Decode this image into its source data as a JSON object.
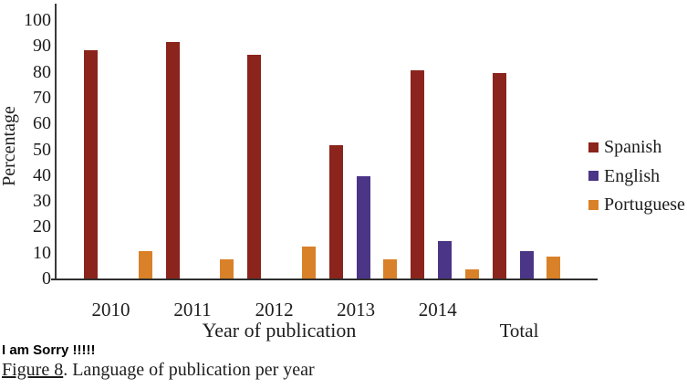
{
  "chart_data": {
    "type": "bar",
    "title": "",
    "categories": [
      "2010",
      "2011",
      "2012",
      "2013",
      "2014",
      "Total"
    ],
    "series": [
      {
        "name": "Spanish",
        "color": "#8b241c",
        "values": [
          89,
          92,
          87,
          52,
          81,
          80
        ]
      },
      {
        "name": "English",
        "color": "#4b3586",
        "values": [
          0,
          0,
          0,
          40,
          15,
          11
        ]
      },
      {
        "name": "Portuguese",
        "color": "#d98129",
        "values": [
          11,
          8,
          13,
          8,
          4,
          9
        ]
      }
    ],
    "xlabel": "Year of publication",
    "ylabel": "Percentage",
    "ylim": [
      0,
      100
    ],
    "ytick_step": 10,
    "grid": false,
    "legend_position": "right"
  },
  "caption": {
    "note": "I am Sorry !!!!!",
    "figure_label": "Figure 8",
    "figure_text": ". Language of publication per year"
  },
  "colors": {
    "axis": "#363636",
    "text": "#1d1d1d",
    "background": "#ffffff"
  }
}
